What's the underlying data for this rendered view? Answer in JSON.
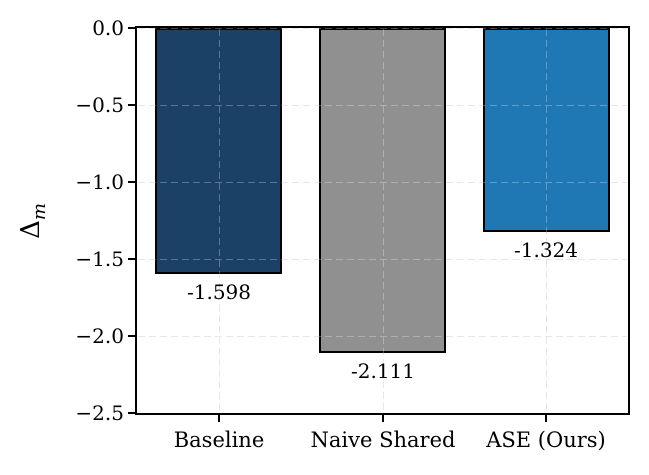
{
  "figure": {
    "background_color": "#ffffff",
    "spine_color": "#000000"
  },
  "chart_data": {
    "type": "bar",
    "orientation": "vertical",
    "categories": [
      "Baseline",
      "Naive Shared",
      "ASE (Ours)"
    ],
    "values": [
      -1.598,
      -2.111,
      -1.324
    ],
    "bar_labels": [
      "-1.598",
      "-2.111",
      "-1.324"
    ],
    "bar_colors": [
      "#1b4266",
      "#909090",
      "#1f77b4"
    ],
    "bar_edge_color": "#000000",
    "title": "",
    "xlabel": "",
    "ylabel": {
      "symbol": "Δ",
      "subscript": "m"
    },
    "ylim": [
      -2.5,
      0.0
    ],
    "yticks": [
      0.0,
      -0.5,
      -1.0,
      -1.5,
      -2.0,
      -2.5
    ],
    "ytick_labels": [
      "0.0",
      "−0.5",
      "−1.0",
      "−1.5",
      "−2.0",
      "−2.5"
    ],
    "grid": {
      "axis": "both",
      "style": "dashed",
      "color": "#dedede"
    },
    "legend": "none"
  }
}
